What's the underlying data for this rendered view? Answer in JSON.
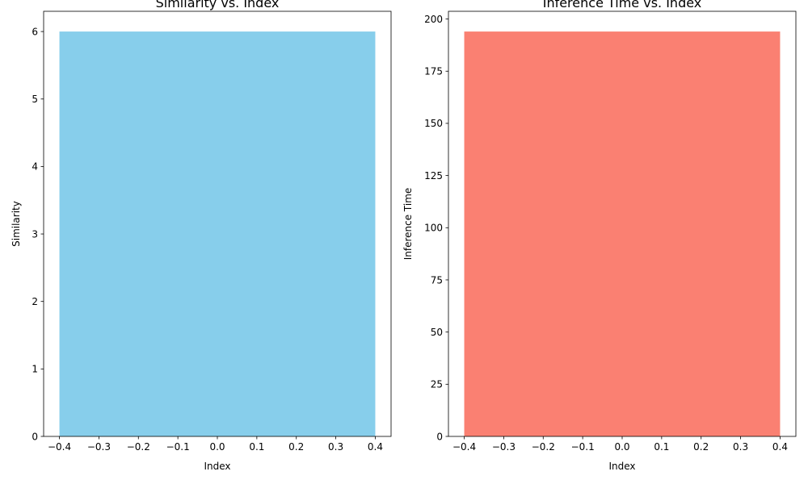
{
  "chart_data": [
    {
      "type": "bar",
      "title": "Similarity vs. Index",
      "xlabel": "Index",
      "ylabel": "Similarity",
      "x": [
        0
      ],
      "values": [
        6
      ],
      "bar_width": 0.8,
      "xlim": [
        -0.44,
        0.44
      ],
      "ylim": [
        0,
        6.3
      ],
      "xticks": [
        -0.4,
        -0.3,
        -0.2,
        -0.1,
        0.0,
        0.1,
        0.2,
        0.3,
        0.4
      ],
      "xtick_labels": [
        "−0.4",
        "−0.3",
        "−0.2",
        "−0.1",
        "0.0",
        "0.1",
        "0.2",
        "0.3",
        "0.4"
      ],
      "yticks": [
        0,
        1,
        2,
        3,
        4,
        5,
        6
      ],
      "ytick_labels": [
        "0",
        "1",
        "2",
        "3",
        "4",
        "5",
        "6"
      ],
      "color": "#87CEEB",
      "grid": false,
      "legend": "none"
    },
    {
      "type": "bar",
      "title": "Inference Time vs. Index",
      "xlabel": "Index",
      "ylabel": "Inference Time",
      "x": [
        0
      ],
      "values": [
        194
      ],
      "bar_width": 0.8,
      "xlim": [
        -0.44,
        0.44
      ],
      "ylim": [
        0,
        203.7
      ],
      "xticks": [
        -0.4,
        -0.3,
        -0.2,
        -0.1,
        0.0,
        0.1,
        0.2,
        0.3,
        0.4
      ],
      "xtick_labels": [
        "−0.4",
        "−0.3",
        "−0.2",
        "−0.1",
        "0.0",
        "0.1",
        "0.2",
        "0.3",
        "0.4"
      ],
      "yticks": [
        0,
        25,
        50,
        75,
        100,
        125,
        150,
        175,
        200
      ],
      "ytick_labels": [
        "0",
        "25",
        "50",
        "75",
        "100",
        "125",
        "150",
        "175",
        "200"
      ],
      "color": "#FA8072",
      "grid": false,
      "legend": "none"
    }
  ]
}
